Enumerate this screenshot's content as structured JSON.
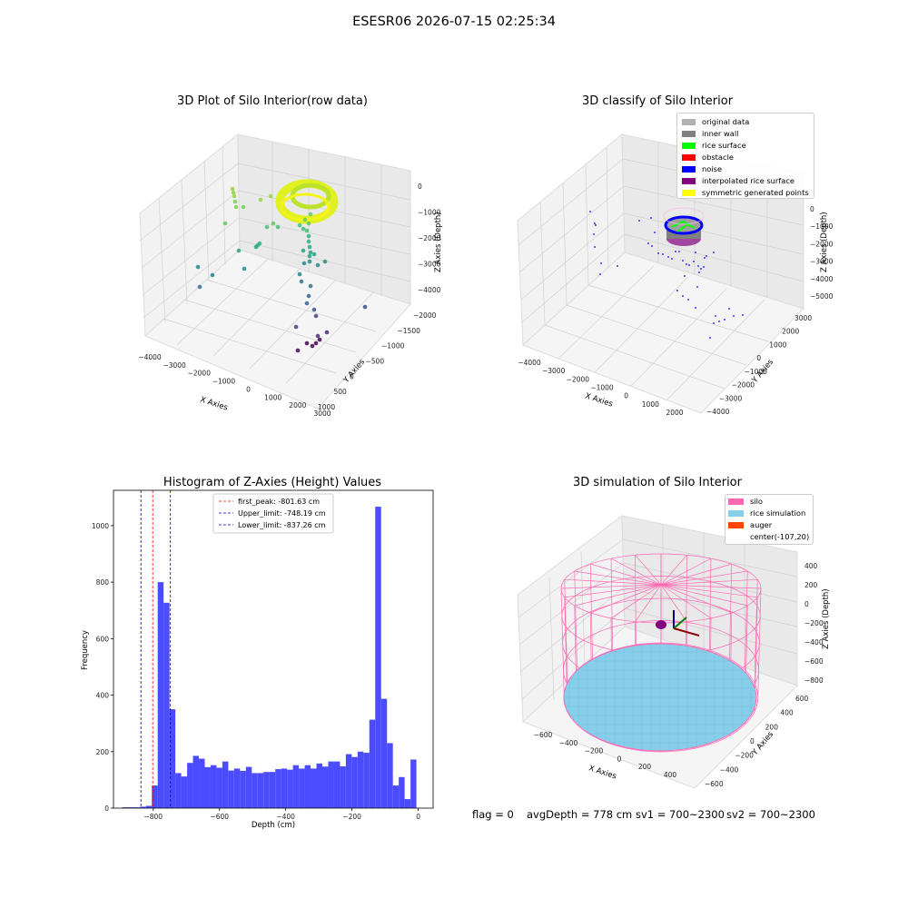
{
  "suptitle": "ESESR06 2026-07-15 02:25:34",
  "status": {
    "flag": "flag = 0",
    "avg_depth": "avgDepth = 778 cm",
    "sv1": "sv1 = 700~2300",
    "sv2": "sv2 = 700~2300"
  },
  "colors": {
    "histogram_bar": "#4b4bff",
    "first_peak_line": "#ff0000",
    "limit_lines": "#0000cc",
    "silo_wireframe": "#ff69b4",
    "rice_simulation": "#87ceeb",
    "auger": "#ff4500"
  },
  "chart_data": [
    {
      "type": "scatter",
      "projection": "3d",
      "title": "3D Plot of Silo Interior(row data)",
      "xlabel": "X Axies",
      "ylabel": "Y Axies",
      "zlabel": "Z Axies (Depth)",
      "x_ticks": [
        "−4000",
        "−3000",
        "−2000",
        "−1000",
        "0",
        "1000",
        "2000",
        "3000"
      ],
      "y_ticks": [
        "−2000",
        "−1500",
        "−1000",
        "−500",
        "0",
        "500",
        "1000"
      ],
      "z_ticks": [
        "−4000",
        "−3000",
        "−2000",
        "−1000",
        "0"
      ],
      "colormap": "viridis (by depth)"
    },
    {
      "type": "scatter",
      "projection": "3d",
      "title": "3D classify of Silo Interior",
      "xlabel": "X Axies",
      "ylabel": "Y Axies",
      "zlabel": "Z Axies (Depth)",
      "x_ticks": [
        "−4000",
        "−3000",
        "−2000",
        "−1000",
        "0",
        "1000",
        "2000"
      ],
      "y_ticks": [
        "−4000",
        "−3000",
        "−2000",
        "−1000",
        "0",
        "1000",
        "2000",
        "3000"
      ],
      "z_ticks": [
        "−5000",
        "−4000",
        "−3000",
        "−2000",
        "−1000",
        "0"
      ],
      "legend_position": "upper-right",
      "legend": [
        {
          "label": "original data",
          "color": "#b0b0b0"
        },
        {
          "label": "inner wall",
          "color": "#808080"
        },
        {
          "label": "rice surface",
          "color": "#00ff00"
        },
        {
          "label": "obstacle",
          "color": "#ff0000"
        },
        {
          "label": "noise",
          "color": "#0000ff"
        },
        {
          "label": "interpolated rice surface",
          "color": "#800080"
        },
        {
          "label": "symmetric generated points",
          "color": "#ffff00"
        }
      ]
    },
    {
      "type": "bar",
      "title": "Histogram of Z-Axies (Height) Values",
      "xlabel": "Depth (cm)",
      "ylabel": "Frequency",
      "xlim": [
        -920,
        45
      ],
      "ylim": [
        0,
        1125
      ],
      "x_ticks": [
        -800,
        -600,
        -400,
        -200,
        0
      ],
      "x_tick_labels": [
        "−800",
        "−600",
        "−400",
        "−200",
        "0"
      ],
      "y_ticks": [
        0,
        200,
        400,
        600,
        800,
        1000
      ],
      "bin_width": 17.75,
      "bin_start": -893.0,
      "values": [
        3,
        3,
        3,
        5,
        8,
        80,
        800,
        727,
        350,
        124,
        112,
        160,
        185,
        175,
        145,
        152,
        143,
        165,
        133,
        140,
        132,
        146,
        124,
        124,
        128,
        128,
        138,
        140,
        136,
        152,
        140,
        152,
        140,
        158,
        147,
        165,
        165,
        148,
        191,
        181,
        200,
        196,
        313,
        1067,
        387,
        230,
        80,
        110,
        32,
        172
      ],
      "vlines": [
        {
          "name": "first_peak: -801.63 cm",
          "x": -801.63,
          "color": "#ff0000"
        },
        {
          "name": "Upper_limit: -748.19 cm",
          "x": -748.19,
          "color": "#0000cc"
        },
        {
          "name": "Lower_limit: -837.26 cm",
          "x": -837.26,
          "color": "#0000cc"
        }
      ],
      "legend_position": "top-center"
    },
    {
      "type": "surface",
      "projection": "3d",
      "title": "3D simulation of Silo Interior",
      "xlabel": "X Axies",
      "ylabel": "Y Axies",
      "zlabel": "Z Axies (Depth)",
      "x_ticks": [
        "−600",
        "−400",
        "−200",
        "0",
        "200",
        "400"
      ],
      "y_ticks": [
        "−600",
        "−400",
        "−200",
        "0",
        "200",
        "400",
        "600"
      ],
      "z_ticks": [
        "−800",
        "−600",
        "−400",
        "−200",
        "0",
        "200",
        "400"
      ],
      "legend_position": "upper-right",
      "legend": [
        {
          "label": "silo",
          "color": "#ff69b4"
        },
        {
          "label": "rice simulation",
          "color": "#87ceeb"
        },
        {
          "label": "auger",
          "color": "#ff4500"
        },
        {
          "label": "center(-107,20)",
          "color": ""
        }
      ]
    }
  ]
}
